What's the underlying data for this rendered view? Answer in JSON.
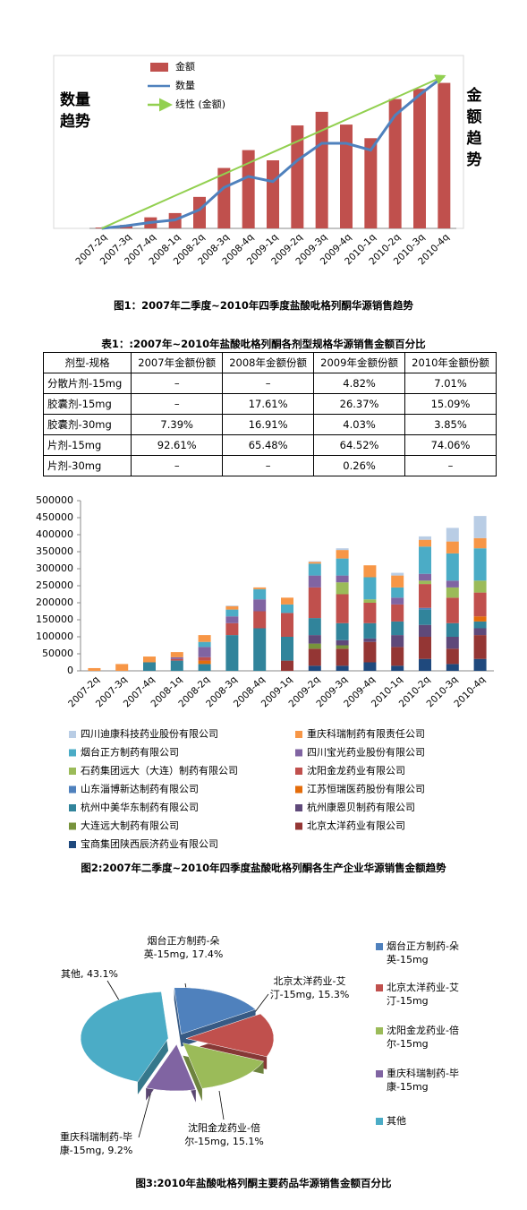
{
  "chart_data": [
    {
      "type": "bar",
      "caption": "图1：2007年二季度~2010年四季度盐酸吡格列酮华源销售趋势",
      "y_label": "数量趋势",
      "y2_label": "金额趋势",
      "categories": [
        "2007-2q",
        "2007-3q",
        "2007-4q",
        "2008-1q",
        "2008-2q",
        "2008-3q",
        "2008-4q",
        "2009-1q",
        "2009-2q",
        "2009-3q",
        "2009-4q",
        "2010-1q",
        "2010-2q",
        "2010-3q",
        "2010-4q"
      ],
      "ylim": [
        0,
        200
      ],
      "series": [
        {
          "name": "金额",
          "type": "bar",
          "color": "#c0504d",
          "values": [
            1,
            4,
            13,
            18,
            37,
            71,
            92,
            80,
            121,
            137,
            122,
            106,
            152,
            164,
            171
          ]
        },
        {
          "name": "数量",
          "type": "line",
          "color": "#4f81bd",
          "values": [
            0,
            3,
            7,
            10,
            22,
            48,
            61,
            55,
            80,
            100,
            100,
            92,
            133,
            157,
            179
          ]
        },
        {
          "name": "线性 (金额)",
          "type": "trend",
          "color": "#92d050",
          "values": [
            0,
            12.8,
            25.6,
            38.4,
            51.1,
            63.9,
            76.7,
            89.5,
            102.3,
            115.1,
            127.9,
            140.6,
            153.4,
            166.2,
            179
          ]
        }
      ]
    },
    {
      "type": "stacked_bar",
      "caption": "图2:2007年二季度~2010年四季度盐酸吡格列酮各生产企业华源销售金额趋势",
      "categories": [
        "2007-2q",
        "2007-3q",
        "2007-4q",
        "2008-1q",
        "2008-2q",
        "2008-3q",
        "2008-4q",
        "2009-1q",
        "2009-2q",
        "2009-3q",
        "2009-4q",
        "2010-1q",
        "2010-2q",
        "2010-3q",
        "2010-4q"
      ],
      "ylim": [
        0,
        500000
      ],
      "yticks": [
        0,
        50000,
        100000,
        150000,
        200000,
        250000,
        300000,
        350000,
        400000,
        450000,
        500000
      ],
      "series": [
        {
          "name": "宝商集团陕西辰济药业有限公司",
          "color": "#1f497d",
          "values": [
            0,
            0,
            0,
            0,
            0,
            0,
            0,
            0,
            15000,
            15000,
            25000,
            15000,
            35000,
            20000,
            35000
          ]
        },
        {
          "name": "北京太洋药业有限公司",
          "color": "#943634",
          "values": [
            0,
            0,
            0,
            0,
            0,
            0,
            0,
            30000,
            50000,
            50000,
            60000,
            55000,
            65000,
            45000,
            70000
          ]
        },
        {
          "name": "大连远大制药有限公司",
          "color": "#77933c",
          "values": [
            0,
            0,
            0,
            0,
            0,
            0,
            0,
            0,
            15000,
            10000,
            0,
            0,
            0,
            0,
            0
          ]
        },
        {
          "name": "杭州康恩贝制药有限公司",
          "color": "#5f497a",
          "values": [
            0,
            0,
            0,
            0,
            0,
            0,
            0,
            0,
            25000,
            15000,
            10000,
            35000,
            35000,
            35000,
            20000
          ]
        },
        {
          "name": "杭州中美华东制药有限公司",
          "color": "#31849b",
          "values": [
            0,
            0,
            25000,
            30000,
            20000,
            105000,
            125000,
            70000,
            50000,
            50000,
            45000,
            40000,
            45000,
            40000,
            20000
          ]
        },
        {
          "name": "江苏恒瑞医药股份有限公司",
          "color": "#e46c0a",
          "values": [
            0,
            0,
            0,
            0,
            10000,
            0,
            0,
            0,
            0,
            0,
            0,
            0,
            0,
            0,
            15000
          ]
        },
        {
          "name": "山东淄博新达制药有限公司",
          "color": "#4f81bd",
          "values": [
            0,
            0,
            0,
            0,
            0,
            0,
            0,
            0,
            0,
            0,
            0,
            0,
            5000,
            0,
            0
          ]
        },
        {
          "name": "沈阳金龙药业有限公司",
          "color": "#c0504d",
          "values": [
            0,
            0,
            0,
            5000,
            10000,
            35000,
            50000,
            70000,
            90000,
            85000,
            60000,
            50000,
            70000,
            75000,
            70000
          ]
        },
        {
          "name": "石药集团远大（大连）制药有限公司",
          "color": "#9bbb59",
          "values": [
            0,
            0,
            0,
            0,
            0,
            0,
            0,
            0,
            0,
            35000,
            10000,
            0,
            10000,
            30000,
            35000
          ]
        },
        {
          "name": "四川宝光药业股份有限公司",
          "color": "#8064a2",
          "values": [
            0,
            0,
            0,
            5000,
            30000,
            20000,
            35000,
            0,
            35000,
            20000,
            0,
            20000,
            20000,
            20000,
            0
          ]
        },
        {
          "name": "烟台正方制药有限公司",
          "color": "#4bacc6",
          "values": [
            0,
            0,
            0,
            0,
            15000,
            20000,
            30000,
            25000,
            35000,
            50000,
            65000,
            30000,
            80000,
            80000,
            95000
          ]
        },
        {
          "name": "重庆科瑞制药有限责任公司",
          "color": "#f79646",
          "values": [
            8000,
            20000,
            17000,
            15000,
            20000,
            10000,
            5000,
            20000,
            5000,
            25000,
            35000,
            35000,
            20000,
            35000,
            30000
          ]
        },
        {
          "name": "四川迪康科技药业股份有限公司",
          "color": "#b9cde5",
          "values": [
            0,
            0,
            0,
            0,
            0,
            2000,
            0,
            0,
            2000,
            5000,
            0,
            8000,
            10000,
            40000,
            65000
          ]
        }
      ]
    },
    {
      "type": "pie",
      "caption": "图3:2010年盐酸吡格列酮主要药品华源销售金额百分比",
      "categories": [
        "烟台正方制药-朵英-15mg",
        "北京太洋药业-艾汀-15mg",
        "沈阳金龙药业-倍尔-15mg",
        "重庆科瑞制药-毕康-15mg",
        "其他"
      ],
      "values": [
        17.4,
        15.3,
        15.1,
        9.2,
        43.1
      ],
      "value_labels": [
        "烟台正方制药-朵英-15mg, 17.4%",
        "北京太洋药业-艾汀-15mg, 15.3%",
        "沈阳金龙药业-倍尔-15mg, 15.1%",
        "重庆科瑞制药-毕康-15mg, 9.2%",
        "其他, 43.1%"
      ],
      "colors": [
        "#4f81bd",
        "#c0504d",
        "#9bbb59",
        "#8064a2",
        "#4bacc6"
      ]
    }
  ],
  "table": {
    "title": "表1：:2007年~2010年盐酸吡格列酮各剂型规格华源销售金额百分比",
    "header": [
      "剂型-规格",
      "2007年金额份额",
      "2008年金额份额",
      "2009年金额份额",
      "2010年金额份额"
    ],
    "rows": [
      [
        "分散片剂-15mg",
        "–",
        "–",
        "4.82%",
        "7.01%"
      ],
      [
        "胶囊剂-15mg",
        "–",
        "17.61%",
        "26.37%",
        "15.09%"
      ],
      [
        "胶囊剂-30mg",
        "7.39%",
        "16.91%",
        "4.03%",
        "3.85%"
      ],
      [
        "片剂-15mg",
        "92.61%",
        "65.48%",
        "64.52%",
        "74.06%"
      ],
      [
        "片剂-30mg",
        "–",
        "–",
        "0.26%",
        "–"
      ]
    ]
  }
}
